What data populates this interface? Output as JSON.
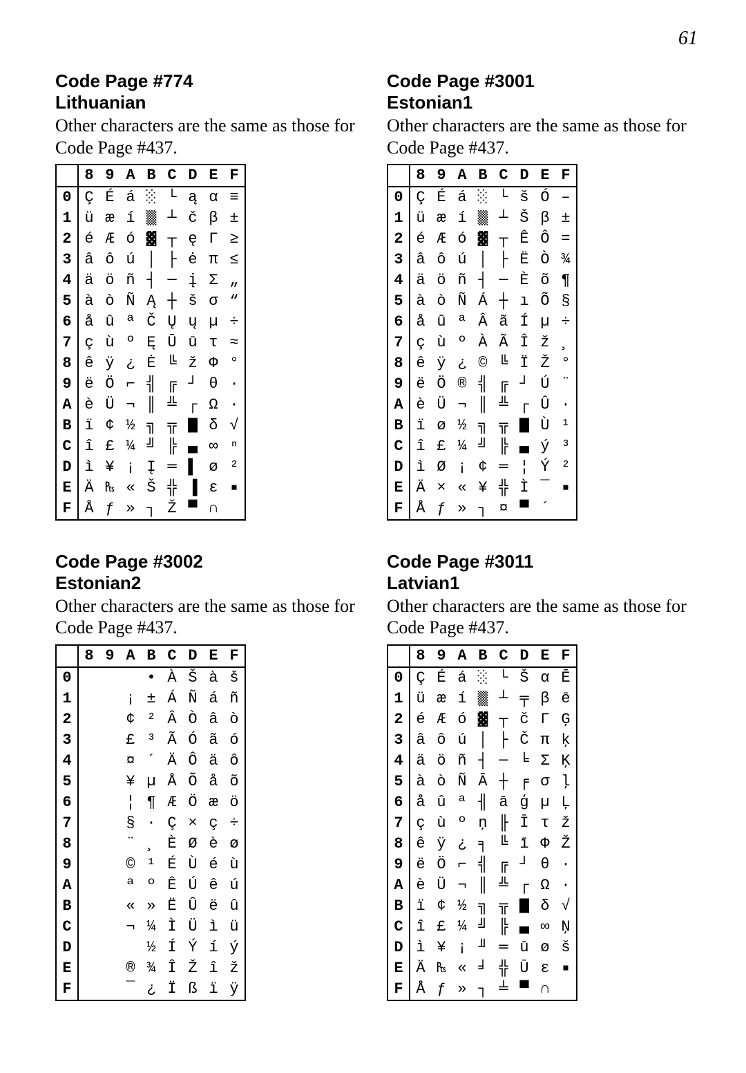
{
  "page_number": "61",
  "col_headers": [
    "8",
    "9",
    "A",
    "B",
    "C",
    "D",
    "E",
    "F"
  ],
  "row_headers": [
    "0",
    "1",
    "2",
    "3",
    "4",
    "5",
    "6",
    "7",
    "8",
    "9",
    "A",
    "B",
    "C",
    "D",
    "E",
    "F"
  ],
  "svg_glyphs": {
    "shade1": "<svg class='glyph-svg' width='16' height='22' viewBox='0 0 8 12'><rect width='8' height='12' fill='#fff'/><g fill='#000'><rect x='0' y='0' width='1' height='1'/><rect x='4' y='0' width='1' height='1'/><rect x='2' y='2' width='1' height='1'/><rect x='6' y='2' width='1' height='1'/><rect x='0' y='4' width='1' height='1'/><rect x='4' y='4' width='1' height='1'/><rect x='2' y='6' width='1' height='1'/><rect x='6' y='6' width='1' height='1'/><rect x='0' y='8' width='1' height='1'/><rect x='4' y='8' width='1' height='1'/><rect x='2' y='10' width='1' height='1'/><rect x='6' y='10' width='1' height='1'/></g></svg>",
    "shade2": "<svg class='glyph-svg' width='16' height='22' viewBox='0 0 8 12'><rect width='8' height='12' fill='#fff'/><g fill='#000'><rect x='0' y='0' width='1' height='1'/><rect x='2' y='0' width='1' height='1'/><rect x='4' y='0' width='1' height='1'/><rect x='6' y='0' width='1' height='1'/><rect x='1' y='1' width='1' height='1'/><rect x='3' y='1' width='1' height='1'/><rect x='5' y='1' width='1' height='1'/><rect x='7' y='1' width='1' height='1'/><rect x='0' y='2' width='1' height='1'/><rect x='2' y='2' width='1' height='1'/><rect x='4' y='2' width='1' height='1'/><rect x='6' y='2' width='1' height='1'/><rect x='1' y='3' width='1' height='1'/><rect x='3' y='3' width='1' height='1'/><rect x='5' y='3' width='1' height='1'/><rect x='7' y='3' width='1' height='1'/><rect x='0' y='4' width='1' height='1'/><rect x='2' y='4' width='1' height='1'/><rect x='4' y='4' width='1' height='1'/><rect x='6' y='4' width='1' height='1'/><rect x='1' y='5' width='1' height='1'/><rect x='3' y='5' width='1' height='1'/><rect x='5' y='5' width='1' height='1'/><rect x='7' y='5' width='1' height='1'/><rect x='0' y='6' width='1' height='1'/><rect x='2' y='6' width='1' height='1'/><rect x='4' y='6' width='1' height='1'/><rect x='6' y='6' width='1' height='1'/><rect x='1' y='7' width='1' height='1'/><rect x='3' y='7' width='1' height='1'/><rect x='5' y='7' width='1' height='1'/><rect x='7' y='7' width='1' height='1'/><rect x='0' y='8' width='1' height='1'/><rect x='2' y='8' width='1' height='1'/><rect x='4' y='8' width='1' height='1'/><rect x='6' y='8' width='1' height='1'/><rect x='1' y='9' width='1' height='1'/><rect x='3' y='9' width='1' height='1'/><rect x='5' y='9' width='1' height='1'/><rect x='7' y='9' width='1' height='1'/><rect x='0' y='10' width='1' height='1'/><rect x='2' y='10' width='1' height='1'/><rect x='4' y='10' width='1' height='1'/><rect x='6' y='10' width='1' height='1'/><rect x='1' y='11' width='1' height='1'/><rect x='3' y='11' width='1' height='1'/><rect x='5' y='11' width='1' height='1'/><rect x='7' y='11' width='1' height='1'/></g></svg>",
    "shade3": "<svg class='glyph-svg' width='16' height='22' viewBox='0 0 8 12'><rect width='8' height='12' fill='#000'/><g fill='#fff'><rect x='0' y='0' width='1' height='1'/><rect x='4' y='0' width='1' height='1'/><rect x='2' y='2' width='1' height='1'/><rect x='6' y='2' width='1' height='1'/><rect x='0' y='4' width='1' height='1'/><rect x='4' y='4' width='1' height='1'/><rect x='2' y='6' width='1' height='1'/><rect x='6' y='6' width='1' height='1'/><rect x='0' y='8' width='1' height='1'/><rect x='4' y='8' width='1' height='1'/><rect x='2' y='10' width='1' height='1'/><rect x='6' y='10' width='1' height='1'/></g></svg>",
    "fullblk": "<svg class='glyph-svg' width='14' height='22' viewBox='0 0 8 12'><rect width='8' height='12' fill='#000'/></svg>",
    "lowhalf": "<svg class='glyph-svg' width='14' height='22' viewBox='0 0 8 12'><rect y='6' width='8' height='6' fill='#000'/></svg>",
    "sqsmall": "<svg class='glyph-svg' width='14' height='14' viewBox='0 0 8 8'><rect x='2' y='2' width='4' height='4' fill='#000'/></svg>"
  },
  "sections": [
    {
      "title_l1": "Code Page #774",
      "title_l2": "Lithuanian",
      "note": "Other characters are the same as those for Code Page #437.",
      "rows": [
        [
          "Ç",
          "É",
          "á",
          "@shade1",
          "└",
          "ą",
          "α",
          "≡"
        ],
        [
          "ü",
          "æ",
          "í",
          "@shade2",
          "┴",
          "č",
          "β",
          "±"
        ],
        [
          "é",
          "Æ",
          "ó",
          "@shade3",
          "┬",
          "ę",
          "Γ",
          "≥"
        ],
        [
          "â",
          "ô",
          "ú",
          "│",
          "├",
          "ė",
          "π",
          "≤"
        ],
        [
          "ä",
          "ö",
          "ñ",
          "┤",
          "─",
          "į",
          "Σ",
          "„"
        ],
        [
          "à",
          "ò",
          "Ñ",
          "Ą",
          "┼",
          "š",
          "σ",
          "“"
        ],
        [
          "å",
          "û",
          "ª",
          "Č",
          "Ų",
          "ų",
          "µ",
          "÷"
        ],
        [
          "ç",
          "ù",
          "º",
          "Ę",
          "Ū",
          "ū",
          "τ",
          "≈"
        ],
        [
          "ê",
          "ÿ",
          "¿",
          "Ė",
          "╚",
          "ž",
          "Φ",
          "°"
        ],
        [
          "ë",
          "Ö",
          "⌐",
          "╣",
          "╔",
          "┘",
          "θ",
          "∙"
        ],
        [
          "è",
          "Ü",
          "¬",
          "║",
          "╩",
          "┌",
          "Ω",
          "·"
        ],
        [
          "ï",
          "¢",
          "½",
          "╗",
          "╦",
          "@fullblk",
          "δ",
          "√"
        ],
        [
          "î",
          "£",
          "¼",
          "╝",
          "╠",
          "@lowhalf",
          "∞",
          "ⁿ"
        ],
        [
          "ì",
          "¥",
          "¡",
          "Į",
          "═",
          "▌",
          "ø",
          "²"
        ],
        [
          "Ä",
          "₧",
          "«",
          "Š",
          "╬",
          "▐",
          "ε",
          "@sqsmall"
        ],
        [
          "Å",
          "ƒ",
          "»",
          "┐",
          "Ž",
          "▀",
          "∩",
          ""
        ]
      ]
    },
    {
      "title_l1": "Code Page #3001",
      "title_l2": "Estonian1",
      "note": "Other characters are the same as those for Code Page #437.",
      "rows": [
        [
          "Ç",
          "É",
          "á",
          "@shade1",
          "└",
          "š",
          "Ó",
          "–"
        ],
        [
          "ü",
          "æ",
          "í",
          "@shade2",
          "┴",
          "Š",
          "β",
          "±"
        ],
        [
          "é",
          "Æ",
          "ó",
          "@shade3",
          "┬",
          "Ê",
          "Ô",
          "="
        ],
        [
          "â",
          "ô",
          "ú",
          "│",
          "├",
          "Ë",
          "Ò",
          "¾"
        ],
        [
          "ä",
          "ö",
          "ñ",
          "┤",
          "─",
          "È",
          "õ",
          "¶"
        ],
        [
          "à",
          "ò",
          "Ñ",
          "Á",
          "┼",
          "ı",
          "Õ",
          "§"
        ],
        [
          "å",
          "û",
          "ª",
          "Â",
          "ã",
          "Í",
          "µ",
          "÷"
        ],
        [
          "ç",
          "ù",
          "º",
          "À",
          "Ã",
          "Î",
          "ž",
          "¸"
        ],
        [
          "ê",
          "ÿ",
          "¿",
          "©",
          "╚",
          "Ï",
          "Ž",
          "°"
        ],
        [
          "ë",
          "Ö",
          "®",
          "╣",
          "╔",
          "┘",
          "Ú",
          "¨"
        ],
        [
          "è",
          "Ü",
          "¬",
          "║",
          "╩",
          "┌",
          "Û",
          "·"
        ],
        [
          "ï",
          "ø",
          "½",
          "╗",
          "╦",
          "@fullblk",
          "Ù",
          "¹"
        ],
        [
          "î",
          "£",
          "¼",
          "╝",
          "╠",
          "@lowhalf",
          "ý",
          "³"
        ],
        [
          "ì",
          "Ø",
          "¡",
          "¢",
          "═",
          "¦",
          "Ý",
          "²"
        ],
        [
          "Ä",
          "×",
          "«",
          "¥",
          "╬",
          "Ì",
          "¯",
          "@sqsmall"
        ],
        [
          "Å",
          "ƒ",
          "»",
          "┐",
          "¤",
          "▀",
          "´",
          ""
        ]
      ]
    },
    {
      "title_l1": "Code Page #3002",
      "title_l2": "Estonian2",
      "note": "Other characters are the same as those for Code Page #437.",
      "rows": [
        [
          "",
          "",
          "",
          "•",
          "À",
          "Š",
          "à",
          "š"
        ],
        [
          "",
          "",
          "¡",
          "±",
          "Á",
          "Ñ",
          "á",
          "ñ"
        ],
        [
          "",
          "",
          "¢",
          "²",
          "Â",
          "Ò",
          "â",
          "ò"
        ],
        [
          "",
          "",
          "£",
          "³",
          "Ã",
          "Ó",
          "ã",
          "ó"
        ],
        [
          "",
          "",
          "¤",
          "´",
          "Ä",
          "Ô",
          "ä",
          "ô"
        ],
        [
          "",
          "",
          "¥",
          "µ",
          "Å",
          "Õ",
          "å",
          "õ"
        ],
        [
          "",
          "",
          "¦",
          "¶",
          "Æ",
          "Ö",
          "æ",
          "ö"
        ],
        [
          "",
          "",
          "§",
          "·",
          "Ç",
          "×",
          "ç",
          "÷"
        ],
        [
          "",
          "",
          "¨",
          "¸",
          "È",
          "Ø",
          "è",
          "ø"
        ],
        [
          "",
          "",
          "©",
          "¹",
          "É",
          "Ù",
          "é",
          "ù"
        ],
        [
          "",
          "",
          "ª",
          "º",
          "Ê",
          "Ú",
          "ê",
          "ú"
        ],
        [
          "",
          "",
          "«",
          "»",
          "Ë",
          "Û",
          "ë",
          "û"
        ],
        [
          "",
          "",
          "¬",
          "¼",
          "Ì",
          "Ü",
          "ì",
          "ü"
        ],
        [
          "",
          "",
          "",
          "½",
          "Í",
          "Ý",
          "í",
          "ý"
        ],
        [
          "",
          "",
          "®",
          "¾",
          "Î",
          "Ž",
          "î",
          "ž"
        ],
        [
          "",
          "",
          "¯",
          "¿",
          "Ï",
          "ß",
          "ï",
          "ÿ"
        ]
      ]
    },
    {
      "title_l1": "Code Page #3011",
      "title_l2": "Latvian1",
      "note": "Other characters are the same as those for Code Page #437.",
      "rows": [
        [
          "Ç",
          "É",
          "á",
          "@shade1",
          "└",
          "Š",
          "α",
          "Ē"
        ],
        [
          "ü",
          "æ",
          "í",
          "@shade2",
          "┴",
          "╤",
          "β",
          "ē"
        ],
        [
          "é",
          "Æ",
          "ó",
          "@shade3",
          "┬",
          "č",
          "Γ",
          "Ģ"
        ],
        [
          "â",
          "ô",
          "ú",
          "│",
          "├",
          "Č",
          "π",
          "ķ"
        ],
        [
          "ä",
          "ö",
          "ñ",
          "┤",
          "─",
          "╘",
          "Σ",
          "Ķ"
        ],
        [
          "à",
          "ò",
          "Ñ",
          "Ā",
          "┼",
          "╒",
          "σ",
          "ļ"
        ],
        [
          "å",
          "û",
          "ª",
          "╢",
          "ā",
          "ģ",
          "µ",
          "Ļ"
        ],
        [
          "ç",
          "ù",
          "º",
          "ņ",
          "╟",
          "Ī",
          "τ",
          "ž"
        ],
        [
          "ê",
          "ÿ",
          "¿",
          "╕",
          "╚",
          "ī",
          "Φ",
          "Ž"
        ],
        [
          "ë",
          "Ö",
          "⌐",
          "╣",
          "╔",
          "┘",
          "θ",
          "∙"
        ],
        [
          "è",
          "Ü",
          "¬",
          "║",
          "╩",
          "┌",
          "Ω",
          "·"
        ],
        [
          "ï",
          "¢",
          "½",
          "╗",
          "╦",
          "@fullblk",
          "δ",
          "√"
        ],
        [
          "î",
          "£",
          "¼",
          "╝",
          "╠",
          "@lowhalf",
          "∞",
          "Ņ"
        ],
        [
          "ì",
          "¥",
          "¡",
          "╜",
          "═",
          "ū",
          "ø",
          "š"
        ],
        [
          "Ä",
          "₧",
          "«",
          "╛",
          "╬",
          "Ū",
          "ε",
          "@sqsmall"
        ],
        [
          "Å",
          "ƒ",
          "»",
          "┐",
          "╧",
          "▀",
          "∩",
          ""
        ]
      ]
    }
  ]
}
